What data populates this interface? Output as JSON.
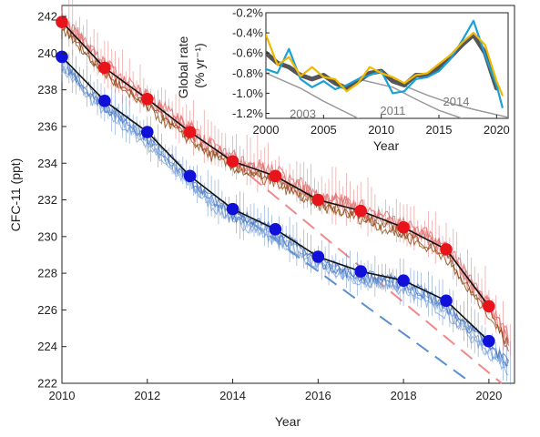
{
  "chart_data": [
    {
      "type": "line",
      "title": "",
      "xlabel": "Year",
      "ylabel": "CFC-11 (ppt)",
      "xlim": [
        2010,
        2020.6
      ],
      "ylim": [
        222,
        242.6
      ],
      "xticks": [
        "2010",
        "2012",
        "2014",
        "2016",
        "2018",
        "2020"
      ],
      "yticks": [
        "222",
        "224",
        "226",
        "228",
        "230",
        "232",
        "234",
        "236",
        "238",
        "240",
        "242"
      ],
      "grid": false,
      "series": [
        {
          "name": "",
          "kind": "annual-points",
          "color": "#e8141c",
          "x": [
            2010,
            2011,
            2012,
            2013,
            2014,
            2015,
            2016,
            2017,
            2018,
            2019,
            2020
          ],
          "y": [
            241.7,
            239.2,
            237.5,
            235.7,
            234.1,
            233.3,
            232.0,
            231.4,
            230.5,
            229.3,
            226.2
          ]
        },
        {
          "name": "",
          "kind": "annual-points",
          "color": "#1010d8",
          "x": [
            2010,
            2011,
            2012,
            2013,
            2014,
            2015,
            2016,
            2017,
            2018,
            2019,
            2020
          ],
          "y": [
            239.8,
            237.4,
            235.7,
            233.3,
            231.5,
            230.4,
            228.9,
            228.1,
            227.6,
            226.5,
            224.3
          ]
        },
        {
          "name": "",
          "kind": "projection-dashed",
          "color": "#f08a8a",
          "x": [
            2014,
            2020.3
          ],
          "y": [
            234.1,
            222.0
          ]
        },
        {
          "name": "",
          "kind": "projection-dashed",
          "color": "#5a8fd0",
          "x": [
            2014,
            2019.6
          ],
          "y": [
            231.5,
            222.0
          ]
        },
        {
          "name": "",
          "kind": "monthly-red",
          "color": "#e07070",
          "x": [
            2010.0,
            2010.5,
            2011.0,
            2011.5,
            2012.0,
            2012.5,
            2013.0,
            2013.5,
            2014.0,
            2014.5,
            2015.0,
            2015.5,
            2016.0,
            2016.5,
            2017.0,
            2017.5,
            2018.0,
            2018.5,
            2019.0,
            2019.5,
            2020.0,
            2020.5
          ],
          "y": [
            241.8,
            240.6,
            239.3,
            238.3,
            237.6,
            236.6,
            235.8,
            234.9,
            234.2,
            233.8,
            233.4,
            232.8,
            232.1,
            231.9,
            231.5,
            231.0,
            230.5,
            230.0,
            229.4,
            227.6,
            226.3,
            224.2
          ]
        },
        {
          "name": "",
          "kind": "monthly-brown",
          "color": "#8a4a10",
          "x": [
            2010.0,
            2010.5,
            2011.0,
            2011.5,
            2012.0,
            2012.5,
            2013.0,
            2013.5,
            2014.0,
            2014.5,
            2015.0,
            2015.5,
            2016.0,
            2016.5,
            2017.0,
            2017.5,
            2018.0,
            2018.5,
            2019.0,
            2019.5,
            2020.0,
            2020.5
          ],
          "y": [
            241.5,
            240.2,
            239.0,
            238.0,
            237.2,
            236.2,
            235.4,
            234.5,
            233.9,
            233.4,
            233.0,
            232.4,
            231.8,
            231.5,
            231.1,
            230.6,
            230.2,
            229.6,
            229.0,
            227.2,
            225.9,
            223.9
          ]
        },
        {
          "name": "",
          "kind": "monthly-blue",
          "color": "#4a78c0",
          "x": [
            2010.0,
            2010.5,
            2011.0,
            2011.5,
            2012.0,
            2012.5,
            2013.0,
            2013.5,
            2014.0,
            2014.5,
            2015.0,
            2015.5,
            2016.0,
            2016.5,
            2017.0,
            2017.5,
            2018.0,
            2018.5,
            2019.0,
            2019.5,
            2020.0,
            2020.5
          ],
          "y": [
            239.6,
            238.4,
            237.2,
            236.4,
            235.5,
            234.4,
            233.2,
            232.2,
            231.3,
            230.9,
            230.3,
            229.6,
            228.8,
            228.3,
            227.9,
            227.8,
            227.5,
            227.0,
            226.3,
            225.2,
            224.1,
            223.1
          ]
        },
        {
          "name": "",
          "kind": "monthly-lightblue",
          "color": "#7fa6dc",
          "x": [
            2010.0,
            2010.5,
            2011.0,
            2011.5,
            2012.0,
            2012.5,
            2013.0,
            2013.5,
            2014.0,
            2014.5,
            2015.0,
            2015.5,
            2016.0,
            2016.5,
            2017.0,
            2017.5,
            2018.0,
            2018.5,
            2019.0,
            2019.5,
            2020.0,
            2020.5
          ],
          "y": [
            239.3,
            238.0,
            236.9,
            236.0,
            235.1,
            234.0,
            232.9,
            231.8,
            231.0,
            230.5,
            229.9,
            229.2,
            228.5,
            228.0,
            227.6,
            227.5,
            227.2,
            226.6,
            225.9,
            224.8,
            223.7,
            222.8
          ]
        }
      ]
    },
    {
      "type": "line",
      "title": "",
      "xlabel": "Year",
      "ylabel": "Global rate (% yr⁻¹)",
      "ylabel_main": "Global rate",
      "ylabel_unit": "(% yr⁻¹)",
      "xlim": [
        2000,
        2021
      ],
      "ylim": [
        -1.25,
        -0.2
      ],
      "xticks": [
        "2000",
        "2005",
        "2010",
        "2015",
        "2020"
      ],
      "yticks": [
        "-0.2%",
        "-0.4%",
        "-0.6%",
        "-0.8%",
        "-1.0%",
        "-1.2%"
      ],
      "annotations": [
        "2003",
        "2011",
        "2014"
      ],
      "series": [
        {
          "name": "",
          "color": "#555555",
          "width": 5,
          "x": [
            2000,
            2001,
            2002,
            2003,
            2004,
            2005,
            2006,
            2007,
            2008,
            2009,
            2010,
            2011,
            2012,
            2013,
            2014,
            2015,
            2016,
            2017,
            2018,
            2019,
            2020
          ],
          "y": [
            -0.6,
            -0.7,
            -0.74,
            -0.82,
            -0.86,
            -0.82,
            -0.9,
            -0.95,
            -0.88,
            -0.8,
            -0.78,
            -0.88,
            -0.92,
            -0.82,
            -0.82,
            -0.75,
            -0.64,
            -0.52,
            -0.42,
            -0.6,
            -0.95
          ]
        },
        {
          "name": "",
          "color": "#f0b800",
          "width": 2.2,
          "x": [
            2000,
            2001,
            2002,
            2003,
            2004,
            2005,
            2006,
            2007,
            2008,
            2009,
            2010,
            2011,
            2012,
            2013,
            2014,
            2015,
            2016,
            2017,
            2018,
            2019,
            2020,
            2020.5
          ],
          "y": [
            -0.42,
            -0.72,
            -0.64,
            -0.83,
            -0.74,
            -0.84,
            -0.86,
            -0.98,
            -0.9,
            -0.74,
            -0.8,
            -0.84,
            -0.9,
            -0.82,
            -0.8,
            -0.71,
            -0.62,
            -0.5,
            -0.4,
            -0.52,
            -0.88,
            -1.02
          ]
        },
        {
          "name": "",
          "color": "#1aa0d8",
          "width": 2.2,
          "x": [
            2000,
            2001,
            2002,
            2003,
            2004,
            2005,
            2006,
            2007,
            2008,
            2009,
            2010,
            2011,
            2012,
            2013,
            2014,
            2015,
            2016,
            2017,
            2018,
            2019,
            2020,
            2020.5
          ],
          "y": [
            -0.76,
            -0.8,
            -0.56,
            -0.86,
            -0.94,
            -0.88,
            -0.96,
            -0.92,
            -0.86,
            -0.82,
            -0.78,
            -1.0,
            -0.98,
            -0.86,
            -0.84,
            -0.78,
            -0.66,
            -0.48,
            -0.28,
            -0.62,
            -0.92,
            -1.14
          ]
        },
        {
          "name": "",
          "color": "#9a9a9a",
          "width": 1.5,
          "x": [
            2000,
            2003,
            2005,
            2008
          ],
          "y": [
            -0.8,
            -0.95,
            -1.08,
            -1.25
          ]
        },
        {
          "name": "",
          "color": "#9a9a9a",
          "width": 1.5,
          "x": [
            2008,
            2011,
            2013,
            2015,
            2017
          ],
          "y": [
            -0.86,
            -0.94,
            -1.06,
            -1.17,
            -1.25
          ]
        },
        {
          "name": "",
          "color": "#9a9a9a",
          "width": 1.5,
          "x": [
            2011,
            2014,
            2016,
            2018,
            2021
          ],
          "y": [
            -0.88,
            -1.02,
            -1.1,
            -1.16,
            -1.24
          ]
        }
      ]
    }
  ]
}
